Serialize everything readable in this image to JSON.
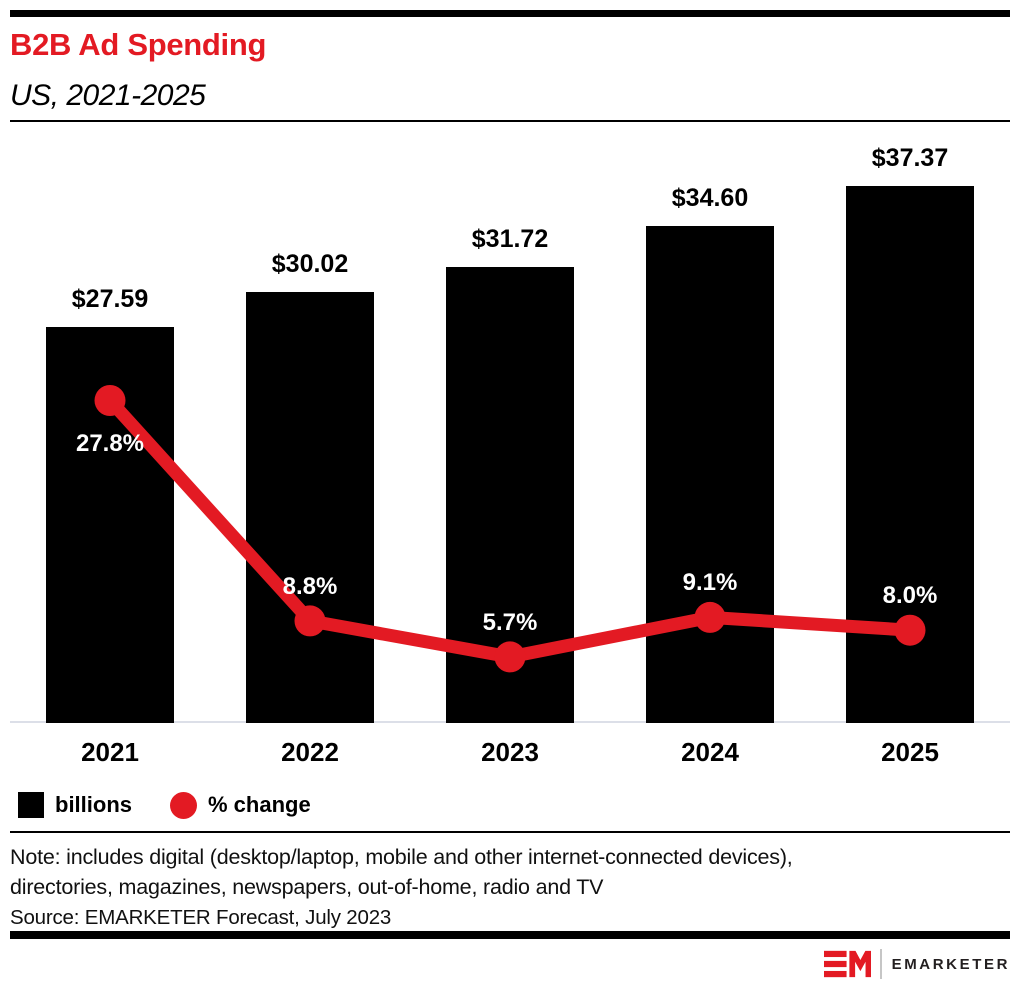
{
  "header": {
    "title": "B2B Ad Spending",
    "subtitle": "US, 2021-2025"
  },
  "chart_data": {
    "type": "bar",
    "title": "B2B Ad Spending",
    "subtitle": "US, 2021-2025",
    "categories": [
      "2021",
      "2022",
      "2023",
      "2024",
      "2025"
    ],
    "series": [
      {
        "name": "billions",
        "type": "bar",
        "unit": "USD billions",
        "values": [
          27.59,
          30.02,
          31.72,
          34.6,
          37.37
        ],
        "labels": [
          "$27.59",
          "$30.02",
          "$31.72",
          "$34.60",
          "$37.37"
        ],
        "color": "#000000"
      },
      {
        "name": "% change",
        "type": "line",
        "unit": "percent",
        "values": [
          27.8,
          8.8,
          5.7,
          9.1,
          8.0
        ],
        "labels": [
          "27.8%",
          "8.8%",
          "5.7%",
          "9.1%",
          "8.0%"
        ],
        "color": "#e31a23"
      }
    ],
    "ylim": [
      0,
      40.5
    ],
    "grid": false,
    "legend_position": "bottom-left"
  },
  "legend": {
    "items": [
      {
        "label": "billions",
        "swatch": "square-icon",
        "color": "#000000"
      },
      {
        "label": "% change",
        "swatch": "circle-icon",
        "color": "#e31a23"
      }
    ]
  },
  "footer": {
    "note_line1": "Note: includes digital (desktop/laptop, mobile and other internet-connected devices),",
    "note_line2": "directories, magazines, newspapers, out-of-home, radio and TV",
    "source": "Source: EMARKETER Forecast, July 2023",
    "brand": "EMARKETER"
  },
  "colors": {
    "accent_red": "#e31a23",
    "bar_black": "#000000",
    "axis_line": "#dcdfe8"
  }
}
